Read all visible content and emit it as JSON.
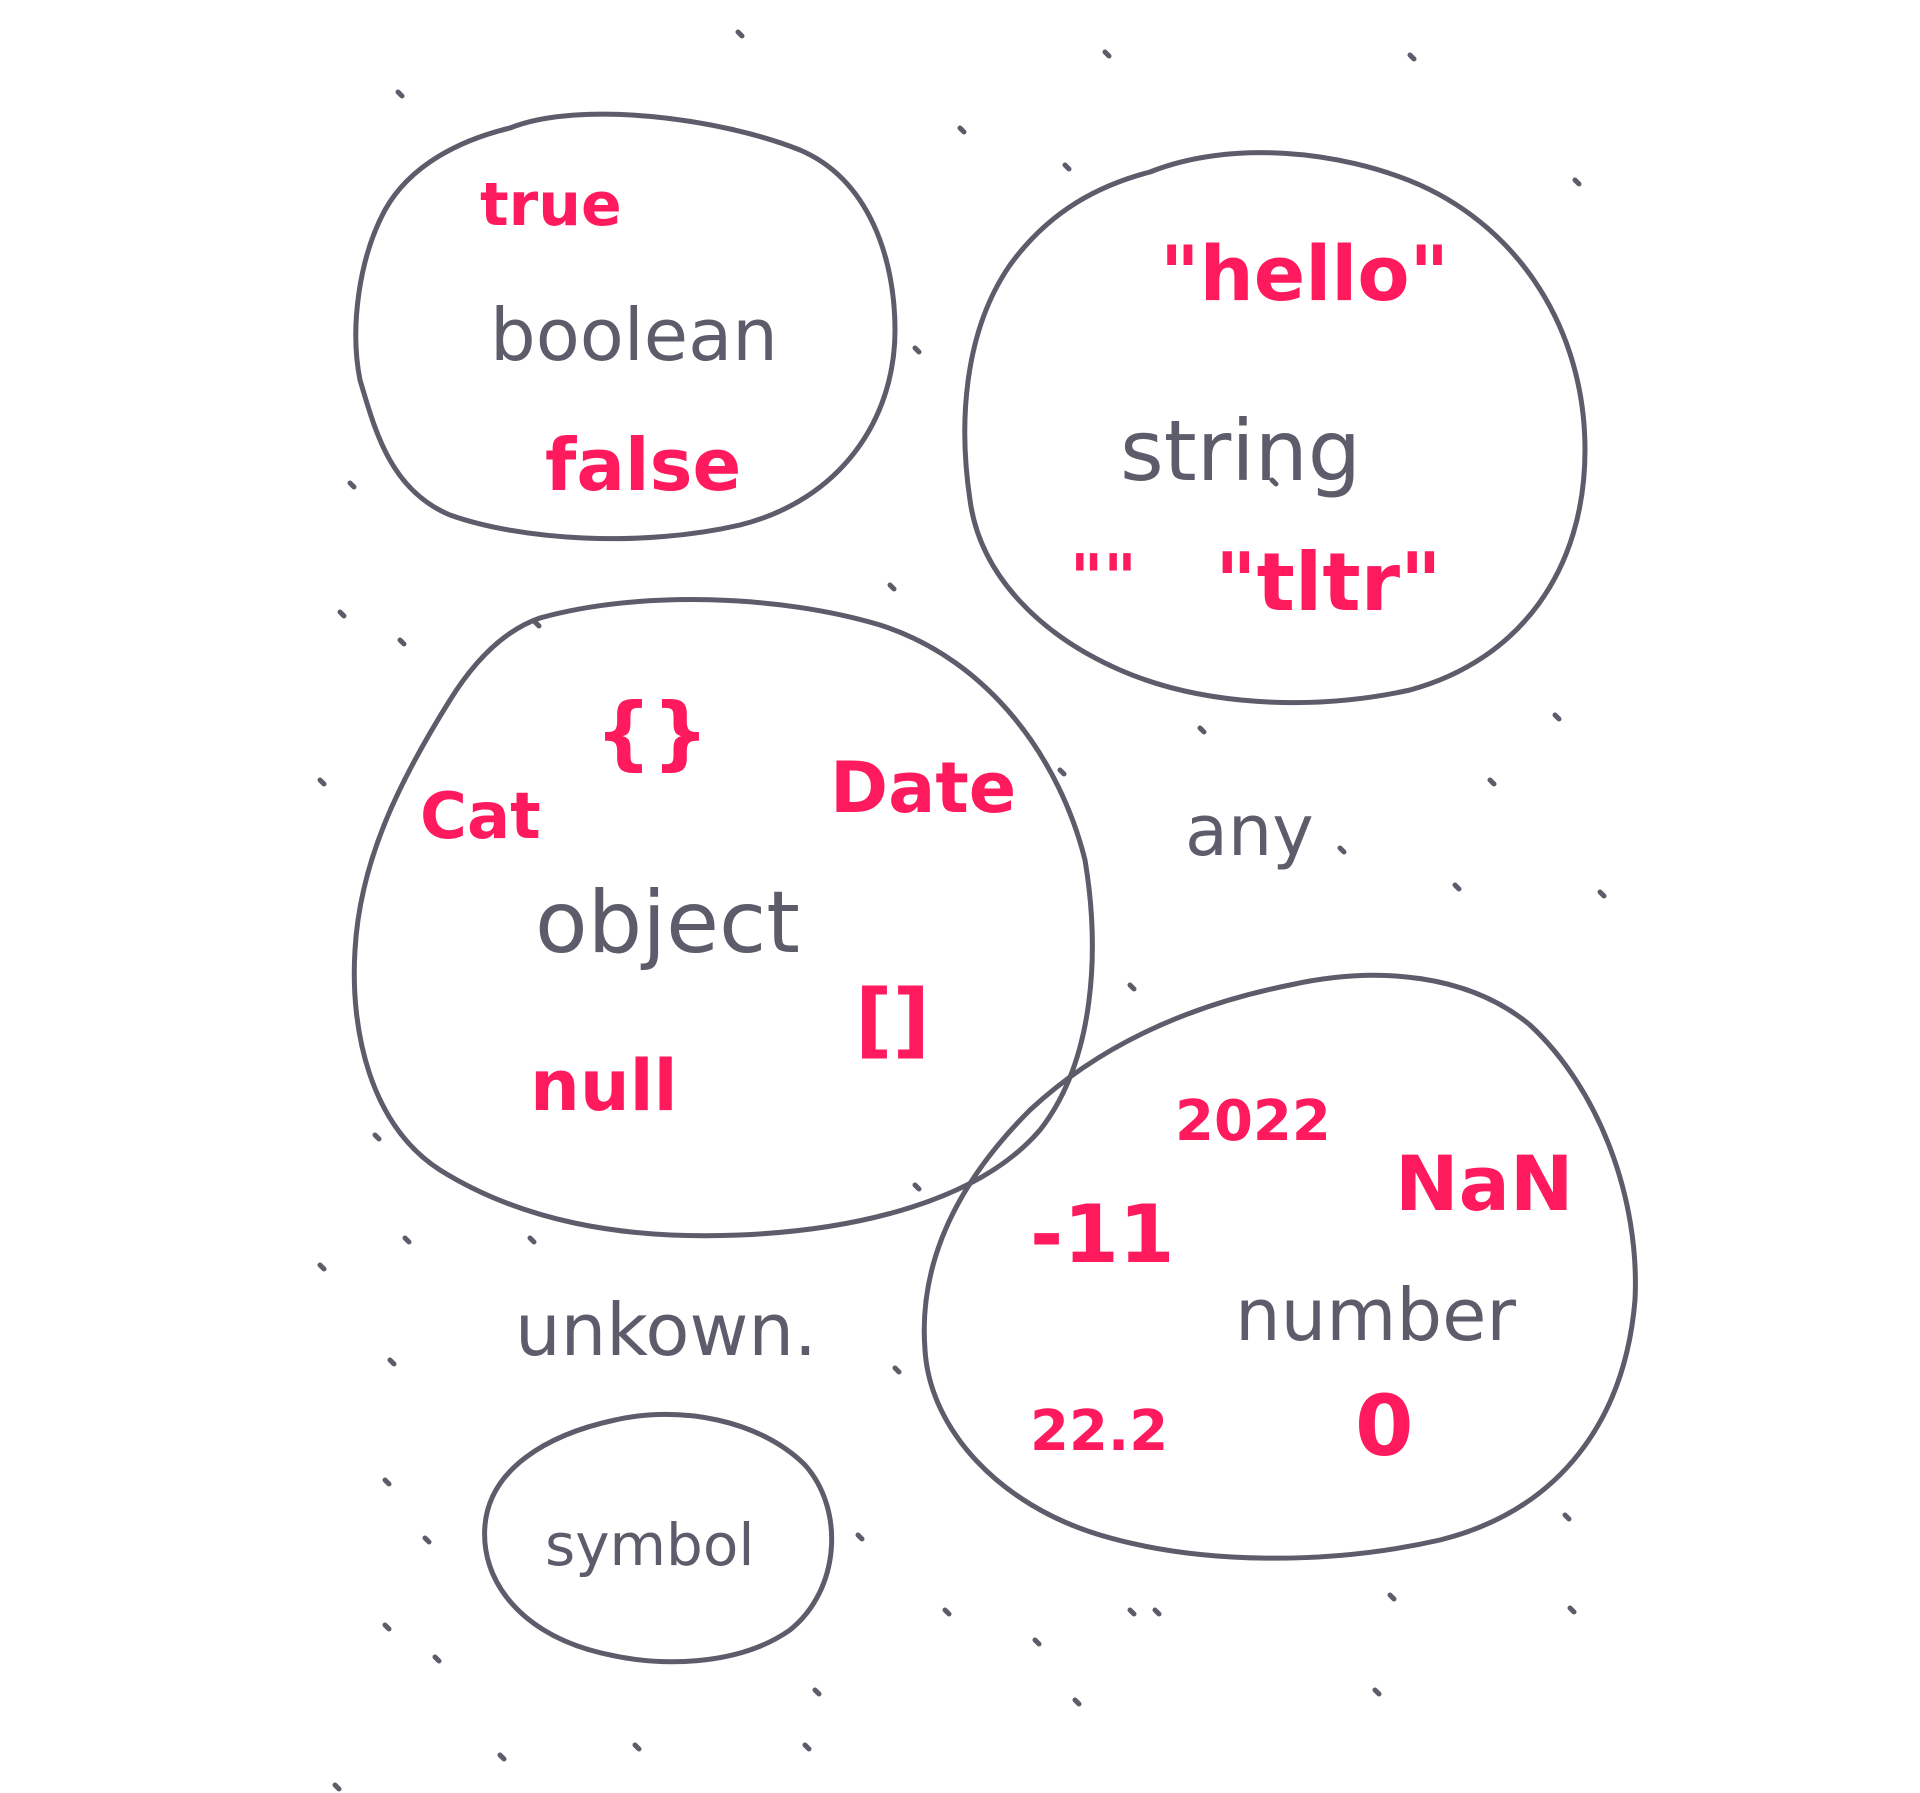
{
  "colors": {
    "outline": "#5c5c6b",
    "type_text": "#5c5c6b",
    "value_text": "#ff1a5e",
    "background": "#ffffff"
  },
  "boolean": {
    "label": "boolean",
    "values": [
      "true",
      "false"
    ]
  },
  "string": {
    "label": "string",
    "values": [
      "\"hello\"",
      "\"\"",
      "\"tltr\""
    ]
  },
  "object": {
    "label": "object",
    "values": [
      "{}",
      "Cat",
      "Date",
      "[]",
      "null"
    ]
  },
  "number": {
    "label": "number",
    "values": [
      "2022",
      "NaN",
      "-11",
      "22.2",
      "0"
    ]
  },
  "symbol": {
    "label": "symbol"
  },
  "loose_labels": {
    "any": "any",
    "unknown": "unkown."
  }
}
